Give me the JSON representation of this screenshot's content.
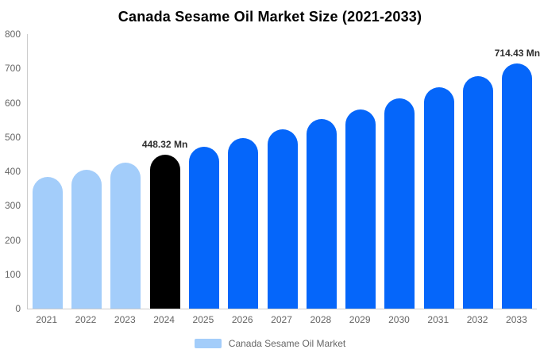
{
  "header": {
    "title": "Canada Sesame Oil Market Size (2021-2033)"
  },
  "chart_data": {
    "type": "bar",
    "title": "Canada Sesame Oil Market Size (2021-2033)",
    "categories": [
      "2021",
      "2022",
      "2023",
      "2024",
      "2025",
      "2026",
      "2027",
      "2028",
      "2029",
      "2030",
      "2031",
      "2032",
      "2033"
    ],
    "values": [
      383.8,
      404.2,
      425.7,
      448.32,
      472.2,
      497.3,
      523.7,
      551.6,
      580.9,
      611.8,
      644.3,
      678.6,
      714.43
    ],
    "bar_colors": [
      "#A3CDFA",
      "#A3CDFA",
      "#A3CDFA",
      "#000000",
      "#0566FA",
      "#0566FA",
      "#0566FA",
      "#0566FA",
      "#0566FA",
      "#0566FA",
      "#0566FA",
      "#0566FA",
      "#0566FA"
    ],
    "point_labels": [
      "",
      "",
      "",
      "448.32 Mn",
      "",
      "",
      "",
      "",
      "",
      "",
      "",
      "",
      "714.43 Mn"
    ],
    "ylim": [
      0,
      800
    ],
    "yticks": [
      0,
      100,
      200,
      300,
      400,
      500,
      600,
      700,
      800
    ],
    "xlabel": "",
    "ylabel": "",
    "grid": false,
    "legend_position": "bottom",
    "colors": {
      "historical": "#A3CDFA",
      "current_year": "#000000",
      "forecast": "#0566FA",
      "axis_line": "#cccccc",
      "tick_text": "#666666",
      "data_label_text": "#2d2d2d"
    },
    "legend": {
      "label": "Canada Sesame Oil Market",
      "swatch_color": "#A3CDFA"
    }
  }
}
